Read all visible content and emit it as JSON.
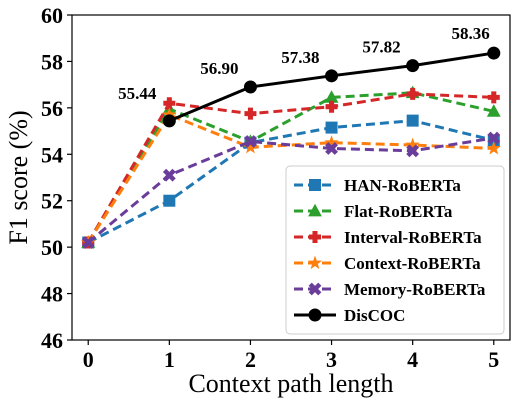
{
  "chart_data": {
    "type": "line",
    "xlabel": "Context path length",
    "ylabel": "F1 score (%)",
    "x": [
      0,
      1,
      2,
      3,
      4,
      5
    ],
    "xlim": [
      -0.2,
      5.2
    ],
    "ylim": [
      46,
      60
    ],
    "yticks": [
      46,
      48,
      50,
      52,
      54,
      56,
      58,
      60
    ],
    "grid": false,
    "legend_position": "lower-right",
    "series": [
      {
        "name": "HAN-RoBERTa",
        "color": "#1f77b4",
        "marker": "square",
        "line": "dashed",
        "values": [
          50.2,
          52.0,
          54.5,
          55.15,
          55.45,
          54.6
        ]
      },
      {
        "name": "Flat-RoBERTa",
        "color": "#2ca02c",
        "marker": "triangle",
        "line": "dashed",
        "values": [
          50.2,
          55.95,
          54.55,
          56.45,
          56.65,
          55.85
        ]
      },
      {
        "name": "Interval-RoBERTa",
        "color": "#d62728",
        "marker": "plus",
        "line": "dashed",
        "values": [
          50.2,
          56.2,
          55.75,
          56.05,
          56.6,
          56.45
        ]
      },
      {
        "name": "Context-RoBERTa",
        "color": "#ff7f0e",
        "marker": "star",
        "line": "dashed",
        "values": [
          50.2,
          55.7,
          54.3,
          54.5,
          54.4,
          54.25
        ]
      },
      {
        "name": "Memory-RoBERTa",
        "color": "#6a3d9a",
        "marker": "x",
        "line": "dashed",
        "values": [
          50.2,
          53.1,
          54.55,
          54.25,
          54.15,
          54.7
        ]
      },
      {
        "name": "DisCOC",
        "color": "#000000",
        "marker": "circle",
        "line": "solid",
        "values": [
          null,
          55.44,
          56.9,
          57.38,
          57.82,
          58.36
        ],
        "data_labels": [
          "",
          "55.44",
          "56.90",
          "57.38",
          "57.82",
          "58.36"
        ]
      }
    ]
  }
}
